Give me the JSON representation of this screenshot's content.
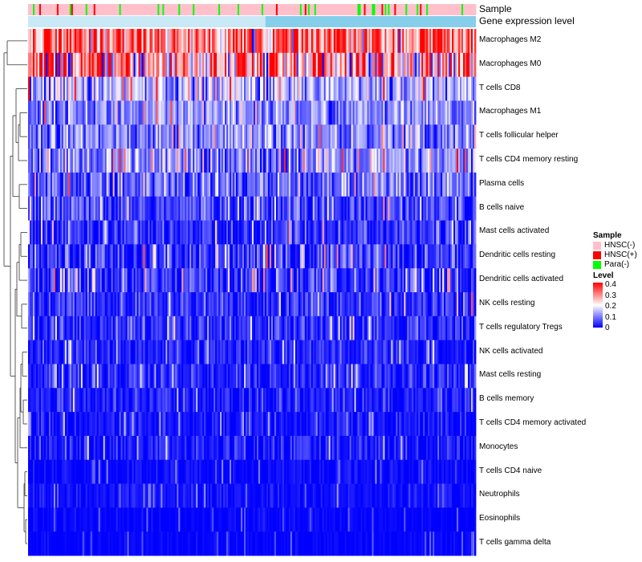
{
  "chart_data": {
    "type": "heatmap",
    "title": "",
    "annotation_tracks": [
      {
        "name": "Sample"
      },
      {
        "name": "Gene expression level"
      }
    ],
    "rows": [
      {
        "name": "Macrophages M2",
        "mean_level": 0.3,
        "spread": 0.09
      },
      {
        "name": "Macrophages M0",
        "mean_level": 0.25,
        "spread": 0.14
      },
      {
        "name": "T cells CD8",
        "mean_level": 0.14,
        "spread": 0.07
      },
      {
        "name": "Macrophages M1",
        "mean_level": 0.1,
        "spread": 0.05
      },
      {
        "name": "T cells follicular helper",
        "mean_level": 0.1,
        "spread": 0.05
      },
      {
        "name": "T cells CD4 memory resting",
        "mean_level": 0.1,
        "spread": 0.06
      },
      {
        "name": "Plasma cells",
        "mean_level": 0.07,
        "spread": 0.06
      },
      {
        "name": "B cells naive",
        "mean_level": 0.05,
        "spread": 0.05
      },
      {
        "name": "Mast cells activated",
        "mean_level": 0.04,
        "spread": 0.05
      },
      {
        "name": "Dendritic cells resting",
        "mean_level": 0.04,
        "spread": 0.06
      },
      {
        "name": "Dendritic cells activated",
        "mean_level": 0.04,
        "spread": 0.05
      },
      {
        "name": "NK cells resting",
        "mean_level": 0.035,
        "spread": 0.04
      },
      {
        "name": "T cells regulatory  Tregs",
        "mean_level": 0.035,
        "spread": 0.04
      },
      {
        "name": "NK cells activated",
        "mean_level": 0.025,
        "spread": 0.035
      },
      {
        "name": "Mast cells resting",
        "mean_level": 0.025,
        "spread": 0.035
      },
      {
        "name": "B cells memory",
        "mean_level": 0.02,
        "spread": 0.03
      },
      {
        "name": "T cells CD4 memory activated",
        "mean_level": 0.015,
        "spread": 0.025
      },
      {
        "name": "Monocytes",
        "mean_level": 0.02,
        "spread": 0.03
      },
      {
        "name": "T cells CD4 naive",
        "mean_level": 0.005,
        "spread": 0.015
      },
      {
        "name": "Neutrophils",
        "mean_level": 0.01,
        "spread": 0.015
      },
      {
        "name": "Eosinophils",
        "mean_level": 0.003,
        "spread": 0.01
      },
      {
        "name": "T cells gamma delta",
        "mean_level": 0.002,
        "spread": 0.008
      }
    ],
    "n_samples": 280,
    "sample_groups": [
      {
        "name": "HNSC(-)",
        "color": "#FFC0CB",
        "share": 0.87
      },
      {
        "name": "HNSC(+)",
        "color": "#FF0000",
        "share": 0.03
      },
      {
        "name": "Para(-)",
        "color": "#00FF00",
        "share": 0.1
      }
    ],
    "expression_level_color": "#87CEEB",
    "expression_level_switch_fraction": 0.53,
    "legend": {
      "sample_title": "Sample",
      "sample_items": [
        {
          "label": "HNSC(-)",
          "color": "#FFC0CB"
        },
        {
          "label": "HNSC(+)",
          "color": "#FF0000"
        },
        {
          "label": "Para(-)",
          "color": "#00FF00"
        }
      ],
      "level_title": "Level",
      "level_ticks": [
        "0.4",
        "0.3",
        "0.2",
        "0.1",
        "0"
      ],
      "color_low": "#0000FF",
      "color_mid": "#FFFFFF",
      "color_high": "#FF0000",
      "value_range": [
        0,
        0.4
      ]
    },
    "row_dendrogram": true
  }
}
